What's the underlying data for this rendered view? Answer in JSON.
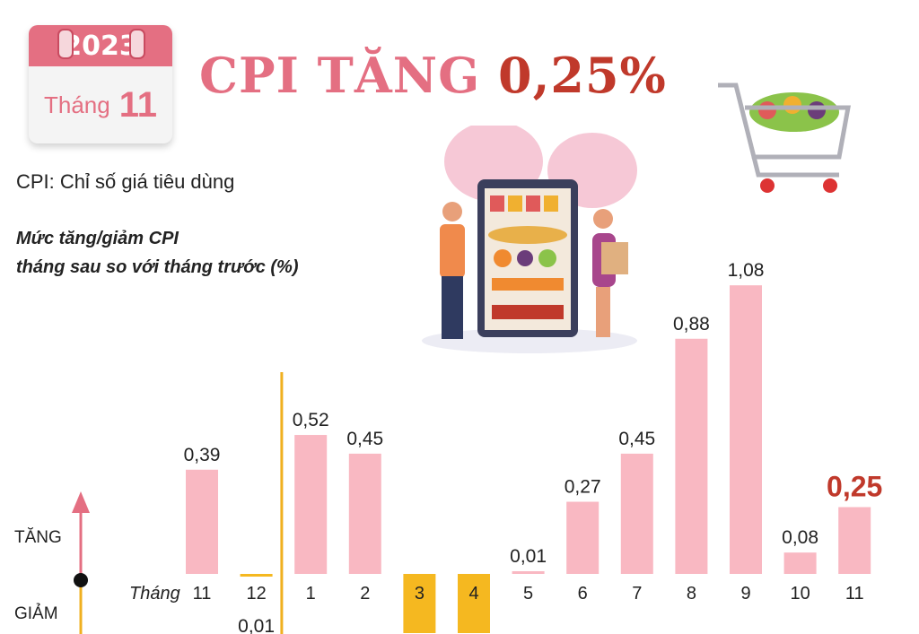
{
  "calendar": {
    "year": "2023",
    "month_word": "Tháng",
    "month_num": "11"
  },
  "headline": {
    "prefix": "CPI TĂNG",
    "value": "0,25%"
  },
  "definition": "CPI: Chỉ số giá tiêu dùng",
  "subtitle_line1": "Mức tăng/giảm CPI",
  "subtitle_line2": "tháng sau so với tháng trước (%)",
  "colors": {
    "bar_up": "#f9b8c2",
    "bar_down": "#f5b820",
    "highlight": "#c0392b",
    "accent": "#e46f82",
    "divider": "#f0b020"
  },
  "chart_data": {
    "type": "bar",
    "x_prefix": "Tháng",
    "up_label": "TĂNG",
    "down_label": "GIẢM",
    "categories": [
      "11",
      "12",
      "1",
      "2",
      "3",
      "4",
      "5",
      "6",
      "7",
      "8",
      "9",
      "10",
      "11"
    ],
    "values": [
      0.39,
      -0.01,
      0.52,
      0.45,
      null,
      null,
      0.01,
      0.27,
      0.45,
      0.88,
      1.08,
      0.08,
      0.25
    ],
    "value_labels": [
      "0,39",
      "0,01",
      "0,52",
      "0,45",
      "",
      "",
      "0,01",
      "0,27",
      "0,45",
      "0,88",
      "1,08",
      "0,08",
      "0,25"
    ],
    "highlight_index": 12,
    "year_divider_after_index": 1
  }
}
